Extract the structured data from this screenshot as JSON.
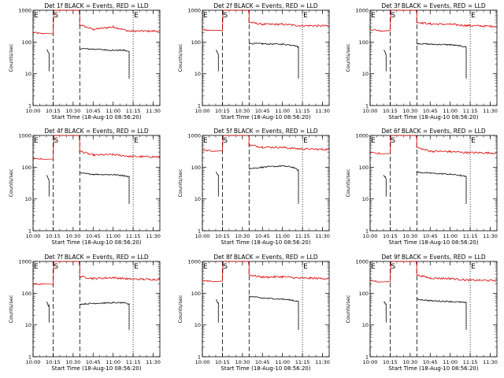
{
  "shared": {
    "type": "line",
    "xlabel": "Start Time (18-Aug-10 08:56:20)",
    "ylabel": "Counts/sec",
    "y_scale": "log",
    "ylim": [
      1,
      1000
    ],
    "y_tick_labels": [
      "1",
      "10",
      "100",
      "1000"
    ],
    "xlim": [
      "10:00",
      "11:35"
    ],
    "x_tick_labels": [
      "10:00",
      "10:15",
      "10:30",
      "10:45",
      "11:00",
      "11:15",
      "11:30"
    ],
    "series_colors": {
      "events": "#000000",
      "lld": "#dd0000"
    },
    "markers": [
      {
        "label": "E",
        "time": "10:00",
        "style": "dashed"
      },
      {
        "label": "S",
        "time": "10:15",
        "style": "dashed"
      },
      {
        "label": "",
        "time": "10:35",
        "style": "dashed"
      },
      {
        "label": "E",
        "time": "11:15",
        "style": "dotted"
      }
    ],
    "grid": false,
    "legend": "none"
  },
  "chart_data": [
    {
      "title": "Det 1f BLACK = Events, RED = LLD",
      "events": [
        [
          10.17,
          55
        ],
        [
          10.2,
          42
        ],
        [
          10.58,
          62
        ],
        [
          10.75,
          60
        ],
        [
          11.0,
          55
        ],
        [
          11.13,
          55
        ],
        [
          11.2,
          50
        ]
      ],
      "lld": [
        [
          10.0,
          200
        ],
        [
          10.12,
          180
        ],
        [
          10.58,
          350
        ],
        [
          10.75,
          250
        ],
        [
          11.0,
          300
        ],
        [
          11.2,
          220
        ],
        [
          11.58,
          220
        ]
      ]
    },
    {
      "title": "Det 2f BLACK = Events, RED = LLD",
      "events": [
        [
          10.17,
          55
        ],
        [
          10.2,
          42
        ],
        [
          10.58,
          90
        ],
        [
          10.75,
          88
        ],
        [
          11.0,
          85
        ],
        [
          11.13,
          80
        ],
        [
          11.2,
          70
        ]
      ],
      "lld": [
        [
          10.0,
          250
        ],
        [
          10.12,
          230
        ],
        [
          10.58,
          420
        ],
        [
          10.75,
          360
        ],
        [
          11.0,
          360
        ],
        [
          11.2,
          330
        ],
        [
          11.58,
          320
        ]
      ]
    },
    {
      "title": "Det 3f BLACK = Events, RED = LLD",
      "events": [
        [
          10.17,
          55
        ],
        [
          10.2,
          42
        ],
        [
          10.58,
          90
        ],
        [
          10.75,
          85
        ],
        [
          11.0,
          82
        ],
        [
          11.13,
          75
        ],
        [
          11.2,
          70
        ]
      ],
      "lld": [
        [
          10.0,
          250
        ],
        [
          10.12,
          230
        ],
        [
          10.58,
          420
        ],
        [
          10.75,
          370
        ],
        [
          11.0,
          360
        ],
        [
          11.2,
          330
        ],
        [
          11.58,
          310
        ]
      ]
    },
    {
      "title": "Det 4f BLACK = Events, RED = LLD",
      "events": [
        [
          10.17,
          55
        ],
        [
          10.2,
          42
        ],
        [
          10.58,
          65
        ],
        [
          10.75,
          60
        ],
        [
          11.0,
          58
        ],
        [
          11.13,
          55
        ],
        [
          11.2,
          50
        ]
      ],
      "lld": [
        [
          10.0,
          190
        ],
        [
          10.12,
          180
        ],
        [
          10.58,
          320
        ],
        [
          10.75,
          240
        ],
        [
          11.0,
          250
        ],
        [
          11.2,
          220
        ],
        [
          11.58,
          210
        ]
      ]
    },
    {
      "title": "Det 5f BLACK = Events, RED = LLD",
      "events": [
        [
          10.17,
          70
        ],
        [
          10.2,
          60
        ],
        [
          10.58,
          90
        ],
        [
          10.75,
          100
        ],
        [
          11.0,
          110
        ],
        [
          11.13,
          100
        ],
        [
          11.2,
          80
        ]
      ],
      "lld": [
        [
          10.0,
          350
        ],
        [
          10.12,
          330
        ],
        [
          10.58,
          500
        ],
        [
          10.75,
          430
        ],
        [
          11.0,
          420
        ],
        [
          11.2,
          380
        ],
        [
          11.58,
          360
        ]
      ]
    },
    {
      "title": "Det 6f BLACK = Events, RED = LLD",
      "events": [
        [
          10.17,
          55
        ],
        [
          10.2,
          45
        ],
        [
          10.58,
          70
        ],
        [
          10.75,
          65
        ],
        [
          11.0,
          60
        ],
        [
          11.13,
          55
        ],
        [
          11.2,
          50
        ]
      ],
      "lld": [
        [
          10.0,
          300
        ],
        [
          10.12,
          270
        ],
        [
          10.58,
          420
        ],
        [
          10.75,
          320
        ],
        [
          11.0,
          310
        ],
        [
          11.2,
          290
        ],
        [
          11.58,
          280
        ]
      ]
    },
    {
      "title": "Det 7f BLACK = Events, RED = LLD",
      "events": [
        [
          10.17,
          50
        ],
        [
          10.2,
          40
        ],
        [
          10.58,
          45
        ],
        [
          10.75,
          48
        ],
        [
          11.0,
          50
        ],
        [
          11.13,
          50
        ],
        [
          11.2,
          45
        ]
      ],
      "lld": [
        [
          10.0,
          200
        ],
        [
          10.12,
          190
        ],
        [
          10.58,
          340
        ],
        [
          10.75,
          290
        ],
        [
          11.0,
          310
        ],
        [
          11.2,
          280
        ],
        [
          11.58,
          270
        ]
      ]
    },
    {
      "title": "Det 8f BLACK = Events, RED = LLD",
      "events": [
        [
          10.17,
          60
        ],
        [
          10.2,
          50
        ],
        [
          10.58,
          80
        ],
        [
          10.75,
          70
        ],
        [
          11.0,
          65
        ],
        [
          11.13,
          60
        ],
        [
          11.2,
          55
        ]
      ],
      "lld": [
        [
          10.0,
          250
        ],
        [
          10.12,
          240
        ],
        [
          10.58,
          380
        ],
        [
          10.75,
          320
        ],
        [
          11.0,
          330
        ],
        [
          11.2,
          300
        ],
        [
          11.58,
          290
        ]
      ]
    },
    {
      "title": "Det 9f BLACK = Events, RED = LLD",
      "events": [
        [
          10.17,
          55
        ],
        [
          10.2,
          45
        ],
        [
          10.58,
          65
        ],
        [
          10.75,
          58
        ],
        [
          11.0,
          55
        ],
        [
          11.13,
          52
        ],
        [
          11.2,
          50
        ]
      ],
      "lld": [
        [
          10.0,
          250
        ],
        [
          10.12,
          230
        ],
        [
          10.58,
          380
        ],
        [
          10.75,
          300
        ],
        [
          11.0,
          290
        ],
        [
          11.2,
          260
        ],
        [
          11.58,
          250
        ]
      ]
    }
  ]
}
